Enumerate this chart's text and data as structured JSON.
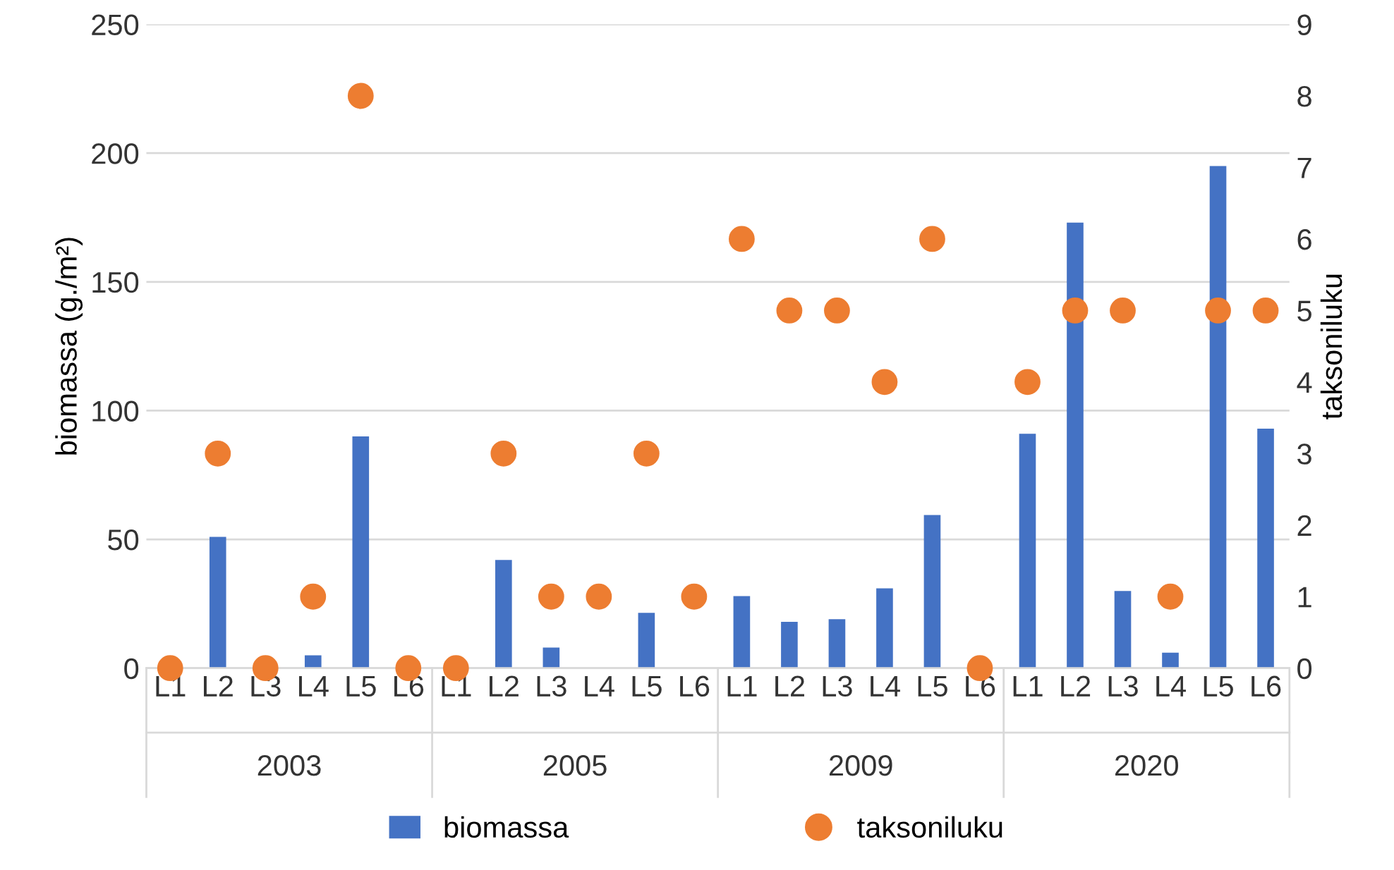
{
  "chart_data": {
    "type": "bar",
    "ylabel": "biomassa (g./m²)",
    "y2label": "taksoniluku",
    "categories": [
      "L1",
      "L2",
      "L3",
      "L4",
      "L5",
      "L6",
      "L1",
      "L2",
      "L3",
      "L4",
      "L5",
      "L6",
      "L1",
      "L2",
      "L3",
      "L4",
      "L5",
      "L6",
      "L1",
      "L2",
      "L3",
      "L4",
      "L5",
      "L6"
    ],
    "annotations": [
      "2003",
      "2005",
      "2009",
      "2020"
    ],
    "series": [
      {
        "name": "biomassa",
        "color": "#4472c4",
        "values": [
          0,
          51,
          0,
          5,
          90,
          0,
          0,
          42,
          8,
          0,
          21.5,
          0,
          28,
          18,
          19,
          31,
          59.5,
          0,
          91,
          173,
          30,
          6,
          195,
          93
        ]
      },
      {
        "name": "taksoniluku",
        "type": "scatter",
        "axis": "y2",
        "color": "#ed7d31",
        "marker": "circle",
        "values": [
          0,
          3,
          0,
          1,
          8,
          0,
          0,
          3,
          1,
          1,
          3,
          1,
          6,
          5,
          5,
          4,
          6,
          0,
          4,
          5,
          5,
          1,
          5,
          5
        ]
      }
    ],
    "ylim": [
      0,
      250
    ],
    "yticks": [
      0,
      50,
      100,
      150,
      200,
      250
    ],
    "y2lim": [
      0,
      9
    ],
    "y2ticks": [
      0,
      1,
      2,
      3,
      4,
      5,
      6,
      7,
      8,
      9
    ],
    "grid": "y",
    "legend": "bottom"
  }
}
